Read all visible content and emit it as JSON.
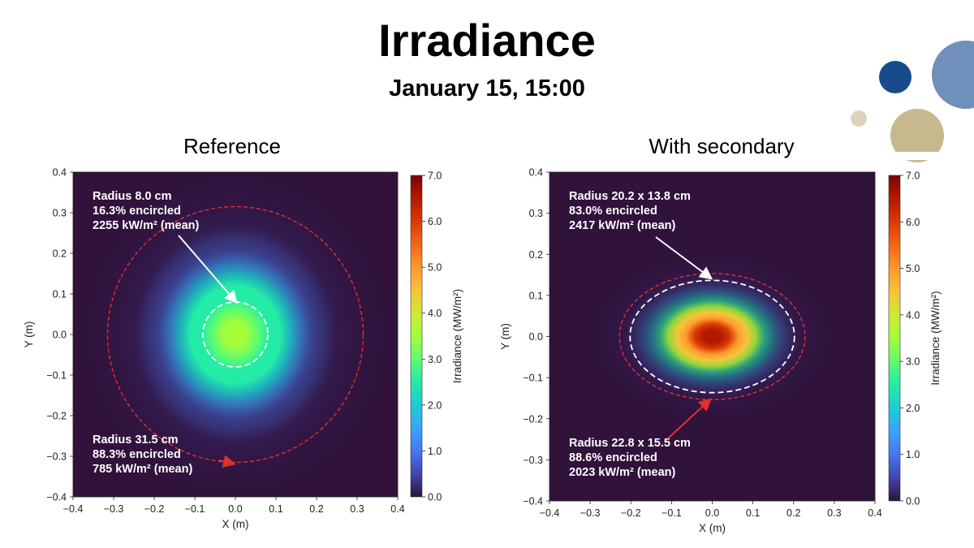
{
  "slide": {
    "title": "Irradiance",
    "subtitle": "January 15, 15:00"
  },
  "colors": {
    "deco_dark_blue": "#174b8b",
    "deco_light_blue": "#7090bb",
    "deco_tan": "#c7b88e",
    "deco_small_tan": "#ddd4bc",
    "ellipse_red": "#e03030",
    "ellipse_white": "#ffffff"
  },
  "chart_data": [
    {
      "type": "heatmap",
      "title": "Reference",
      "xlabel": "X (m)",
      "ylabel": "Y (m)",
      "xlim": [
        -0.4,
        0.4
      ],
      "ylim": [
        -0.4,
        0.4
      ],
      "xticks": [
        "−0.4",
        "−0.3",
        "−0.2",
        "−0.1",
        "0.0",
        "0.1",
        "0.2",
        "0.3",
        "0.4"
      ],
      "yticks": [
        "0.4",
        "0.3",
        "0.2",
        "0.1",
        "0.0",
        "−0.1",
        "−0.2",
        "−0.3",
        "−0.4"
      ],
      "colorbar": {
        "label": "Irradiance (MW/m²)",
        "range": [
          0,
          7.0
        ],
        "ticks": [
          "7.0",
          "6.0",
          "5.0",
          "4.0",
          "3.0",
          "2.0",
          "1.0",
          "0.0"
        ]
      },
      "spot": {
        "sigma_x": 0.12,
        "sigma_y": 0.13,
        "peak": 3.1
      },
      "regions": [
        {
          "name": "inner",
          "color": "white",
          "radius_x": 0.08,
          "radius_y": 0.08,
          "lines": [
            "Radius 8.0 cm",
            "16.3% encircled",
            "2255 kW/m² (mean)"
          ]
        },
        {
          "name": "outer",
          "color": "red",
          "radius_x": 0.315,
          "radius_y": 0.315,
          "lines": [
            "Radius 31.5 cm",
            "88.3% encircled",
            "785 kW/m² (mean)"
          ]
        }
      ]
    },
    {
      "type": "heatmap",
      "title": "With secondary",
      "xlabel": "X (m)",
      "ylabel": "Y (m)",
      "xlim": [
        -0.4,
        0.4
      ],
      "ylim": [
        -0.4,
        0.4
      ],
      "xticks": [
        "−0.4",
        "−0.3",
        "−0.2",
        "−0.1",
        "0.0",
        "0.1",
        "0.2",
        "0.3",
        "0.4"
      ],
      "yticks": [
        "0.4",
        "0.3",
        "0.2",
        "0.1",
        "0.0",
        "−0.1",
        "−0.2",
        "−0.3",
        "−0.4"
      ],
      "colorbar": {
        "label": "Irradiance (MW/m²)",
        "range": [
          0,
          7.0
        ],
        "ticks": [
          "7.0",
          "6.0",
          "5.0",
          "4.0",
          "3.0",
          "2.0",
          "1.0",
          "0.0"
        ]
      },
      "spot": {
        "sigma_x": 0.095,
        "sigma_y": 0.065,
        "peak": 6.2
      },
      "regions": [
        {
          "name": "inner",
          "color": "white",
          "radius_x": 0.202,
          "radius_y": 0.138,
          "lines": [
            "Radius 20.2 x 13.8 cm",
            "83.0% encircled",
            "2417 kW/m² (mean)"
          ]
        },
        {
          "name": "outer",
          "color": "red",
          "radius_x": 0.228,
          "radius_y": 0.155,
          "lines": [
            "Radius 22.8 x 15.5 cm",
            "88.6% encircled",
            "2023 kW/m² (mean)"
          ]
        }
      ]
    }
  ]
}
